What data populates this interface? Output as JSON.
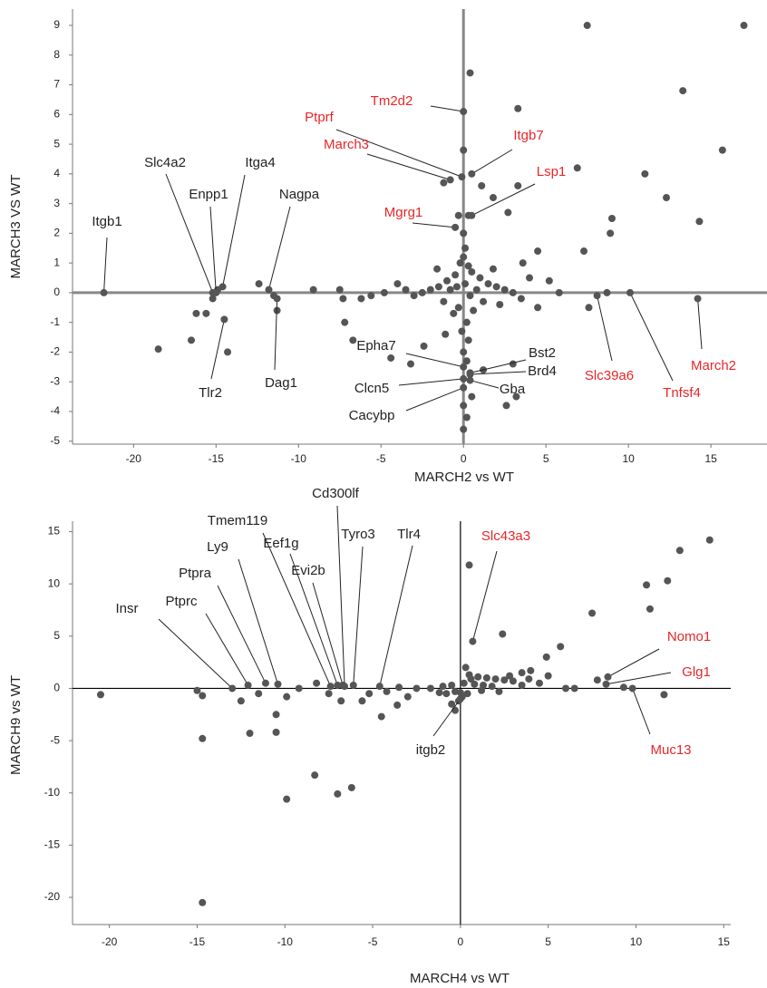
{
  "chart_data": [
    {
      "type": "scatter",
      "x_label": "MARCH2 vs WT",
      "y_label": "MARCH3 VS WT",
      "xlim": [
        -23.7,
        18.4
      ],
      "ylim": [
        -5.1,
        9.55
      ],
      "xticks": [
        -20,
        -15,
        -10,
        -5,
        0,
        5,
        10,
        15
      ],
      "yticks": [
        -5,
        -4,
        -3,
        -2,
        -1,
        0,
        1,
        2,
        3,
        4,
        5,
        6,
        7,
        8,
        9
      ],
      "color": "#555555",
      "x": [
        7.5,
        17,
        13.3,
        15.7,
        6.9,
        11,
        12.3,
        9,
        8.9,
        14.3,
        7.3,
        0.4,
        3.3,
        0,
        -1.2,
        1.1,
        1.8,
        3.3,
        2.7,
        0.3,
        -0.3,
        -15.2,
        -14.9,
        -16.2,
        -15.6,
        -16.5,
        -18.5,
        -14.3,
        -12.4,
        -11.5,
        -11.3,
        -9.1,
        -7.5,
        -7.3,
        -7.2,
        -6.7,
        -6.2,
        -5.6,
        -4.4,
        -4.8,
        -3.5,
        -3.2,
        -2.4,
        -1.1,
        3.5,
        4.5,
        5.8,
        7.6,
        8.7,
        3.2,
        2.6,
        0,
        0.2,
        0,
        0.5,
        1.2,
        3,
        0.1,
        0,
        -0.2,
        0.3,
        0.5,
        -0.5,
        1,
        -1,
        1.5,
        -1.5,
        2,
        -2,
        2.5,
        -2.5,
        3,
        -3,
        1.2,
        -1.2,
        0.6,
        -0.6,
        0.2,
        -0.1,
        0.3,
        0,
        0.2,
        -0.3,
        0.8,
        -0.8,
        1.8,
        -1.6,
        2.2,
        4,
        4.5,
        5.2,
        3.6,
        -4,
        0,
        0.1,
        0.4,
        -0.4
      ],
      "y": [
        9,
        9,
        6.8,
        4.8,
        4.2,
        4,
        3.2,
        2.5,
        2,
        2.4,
        1.4,
        7.4,
        6.2,
        4.8,
        3.7,
        3.6,
        3.2,
        3.6,
        2.7,
        2.6,
        2.6,
        -0.2,
        0.1,
        -0.7,
        -0.7,
        -1.6,
        -1.9,
        -2,
        0.3,
        -0.1,
        -0.6,
        0.1,
        0.1,
        -0.2,
        -1,
        -1.6,
        -0.2,
        -0.1,
        -2.2,
        0,
        0.1,
        -2.4,
        -1.8,
        -1.4,
        -0.2,
        -0.5,
        0,
        -0.5,
        0,
        -3.5,
        -3.8,
        -4.6,
        -4.2,
        -3.8,
        -3.5,
        -2.6,
        -2.4,
        1.5,
        1.2,
        1,
        0.9,
        0.7,
        0.6,
        0.5,
        0.4,
        0.3,
        0.2,
        0.2,
        0.1,
        0.1,
        0,
        0,
        -0.1,
        -0.3,
        -0.3,
        -0.6,
        -0.7,
        -1,
        -1.3,
        -1.6,
        -2,
        -2.3,
        -0.5,
        0.1,
        0.1,
        0.8,
        0.8,
        -0.4,
        0.5,
        1.4,
        0.4,
        1,
        0.3,
        2,
        0.3,
        -0.1,
        0.2
      ],
      "annotations": [
        {
          "text": "Itgb1",
          "x": -21.8,
          "y": 0,
          "color": "#222222"
        },
        {
          "text": "Slc4a2",
          "x": -15.2,
          "y": 0,
          "color": "#222222"
        },
        {
          "text": "Enpp1",
          "x": -15,
          "y": 0,
          "color": "#222222"
        },
        {
          "text": "Itga4",
          "x": -14.6,
          "y": 0.2,
          "color": "#222222"
        },
        {
          "text": "Nagpa",
          "x": -11.8,
          "y": 0.1,
          "color": "#222222"
        },
        {
          "text": "Tlr2",
          "x": -14.5,
          "y": -0.9,
          "color": "#222222"
        },
        {
          "text": "Dag1",
          "x": -11.3,
          "y": -0.2,
          "color": "#222222"
        },
        {
          "text": "Ptprf",
          "x": -0.1,
          "y": 3.9,
          "color": "#e8262a"
        },
        {
          "text": "Tm2d2",
          "x": 0,
          "y": 6.1,
          "color": "#e8262a"
        },
        {
          "text": "March3",
          "x": -0.8,
          "y": 3.8,
          "color": "#e8262a"
        },
        {
          "text": "Itgb7",
          "x": 0.5,
          "y": 4,
          "color": "#e8262a"
        },
        {
          "text": "Lsp1",
          "x": 0.5,
          "y": 2.6,
          "color": "#e8262a"
        },
        {
          "text": "Mgrg1",
          "x": -0.5,
          "y": 2.2,
          "color": "#e8262a"
        },
        {
          "text": "Slc39a6",
          "x": 8.1,
          "y": -0.1,
          "color": "#e8262a"
        },
        {
          "text": "Tnfsf4",
          "x": 10.1,
          "y": 0,
          "color": "#e8262a"
        },
        {
          "text": "March2",
          "x": 14.2,
          "y": -0.2,
          "color": "#e8262a"
        },
        {
          "text": "Epha7",
          "x": 0,
          "y": -2.5,
          "color": "#222222"
        },
        {
          "text": "Bst2",
          "x": 0.4,
          "y": -2.7,
          "color": "#222222"
        },
        {
          "text": "Brd4",
          "x": 0.4,
          "y": -2.75,
          "color": "#222222"
        },
        {
          "text": "Clcn5",
          "x": 0,
          "y": -2.9,
          "color": "#222222"
        },
        {
          "text": "Gba",
          "x": 0.4,
          "y": -2.95,
          "color": "#222222"
        },
        {
          "text": "Cacybp",
          "x": 0,
          "y": -3.2,
          "color": "#222222"
        }
      ]
    },
    {
      "type": "scatter",
      "x_label": "MARCH4 vs WT",
      "y_label": "MARCH9 vs WT",
      "xlim": [
        -22.1,
        15.4
      ],
      "ylim": [
        -22.6,
        16
      ],
      "xticks": [
        -20,
        -15,
        -10,
        -5,
        0,
        5,
        10,
        15
      ],
      "yticks": [
        -20,
        -15,
        -10,
        -5,
        0,
        5,
        10,
        15
      ],
      "color": "#555555",
      "x": [
        0.5,
        2.4,
        14.2,
        12.5,
        11.8,
        10.6,
        10.8,
        7.5,
        11.6,
        5.7,
        4.9,
        4,
        3.5,
        7.8,
        9.3,
        6.5,
        6,
        -20.5,
        -15,
        -14.7,
        -14.7,
        -14.7,
        -12,
        -10.5,
        -10.5,
        -9.9,
        -9.9,
        -8.3,
        -7,
        -6.2,
        -8.2,
        -7.5,
        -6.8,
        -5.6,
        -4.5,
        -3.6,
        -3,
        -5.2,
        -4.2,
        -3.5,
        -2.5,
        -1.7,
        -1.2,
        -0.5,
        -0.3,
        0,
        -9.2,
        -11.5,
        -12.5,
        0.3,
        0.5,
        1,
        1.5,
        2,
        2.5,
        3,
        0.2,
        0.8,
        1.3,
        1.8,
        -0.5,
        -1,
        -0.3,
        0.4,
        2.2,
        3.5,
        4.5,
        5,
        -0.1,
        0.1,
        1.2,
        -0.8,
        0.6,
        2.8,
        3.9
      ],
      "y": [
        11.8,
        5.2,
        14.2,
        13.2,
        10.3,
        9.9,
        7.6,
        7.2,
        -0.6,
        4,
        3,
        1.7,
        1.5,
        0.8,
        0.1,
        0,
        0,
        -0.6,
        -0.2,
        -0.7,
        -4.8,
        -20.5,
        -4.3,
        -4.2,
        -2.5,
        -0.8,
        -10.6,
        -8.3,
        -10.1,
        -9.5,
        0.5,
        -0.5,
        -1.2,
        -1.2,
        -2.7,
        -1.6,
        -0.8,
        -0.5,
        -0.3,
        0.1,
        0,
        0,
        -0.4,
        -1.5,
        -2.1,
        -0.4,
        0,
        -0.5,
        -1.2,
        2,
        1.3,
        1.1,
        1,
        0.9,
        0.8,
        0.7,
        0.5,
        0.4,
        0.3,
        0.2,
        0.3,
        0.2,
        -0.3,
        -0.5,
        -0.3,
        0.3,
        0.5,
        1.2,
        -1.2,
        -0.8,
        -0.2,
        -0.5,
        0.9,
        1.2,
        0.9
      ],
      "annotations": [
        {
          "text": "Insr",
          "x": -13,
          "y": 0,
          "color": "#222222"
        },
        {
          "text": "Ptprc",
          "x": -12.1,
          "y": 0.3,
          "color": "#222222"
        },
        {
          "text": "Ptpra",
          "x": -11.1,
          "y": 0.5,
          "color": "#222222"
        },
        {
          "text": "Ly9",
          "x": -10.4,
          "y": 0.4,
          "color": "#222222"
        },
        {
          "text": "Tmem119",
          "x": -7.4,
          "y": 0.2,
          "color": "#222222"
        },
        {
          "text": "Eef1g",
          "x": -7,
          "y": 0.3,
          "color": "#222222"
        },
        {
          "text": "Evi2b",
          "x": -6.7,
          "y": 0.3,
          "color": "#222222"
        },
        {
          "text": "Cd300lf",
          "x": -6.6,
          "y": 0.2,
          "color": "#222222"
        },
        {
          "text": "Tyro3",
          "x": -6.1,
          "y": 0.3,
          "color": "#222222"
        },
        {
          "text": "Tlr4",
          "x": -4.6,
          "y": 0.2,
          "color": "#222222"
        },
        {
          "text": "Slc43a3",
          "x": 0.7,
          "y": 4.5,
          "color": "#e8262a"
        },
        {
          "text": "Nomo1",
          "x": 8.4,
          "y": 1.1,
          "color": "#e8262a"
        },
        {
          "text": "Glg1",
          "x": 8.3,
          "y": 0.4,
          "color": "#e8262a"
        },
        {
          "text": "Muc13",
          "x": 9.8,
          "y": 0,
          "color": "#e8262a"
        },
        {
          "text": "itgb2",
          "x": 0,
          "y": -1,
          "color": "#222222"
        }
      ]
    }
  ]
}
